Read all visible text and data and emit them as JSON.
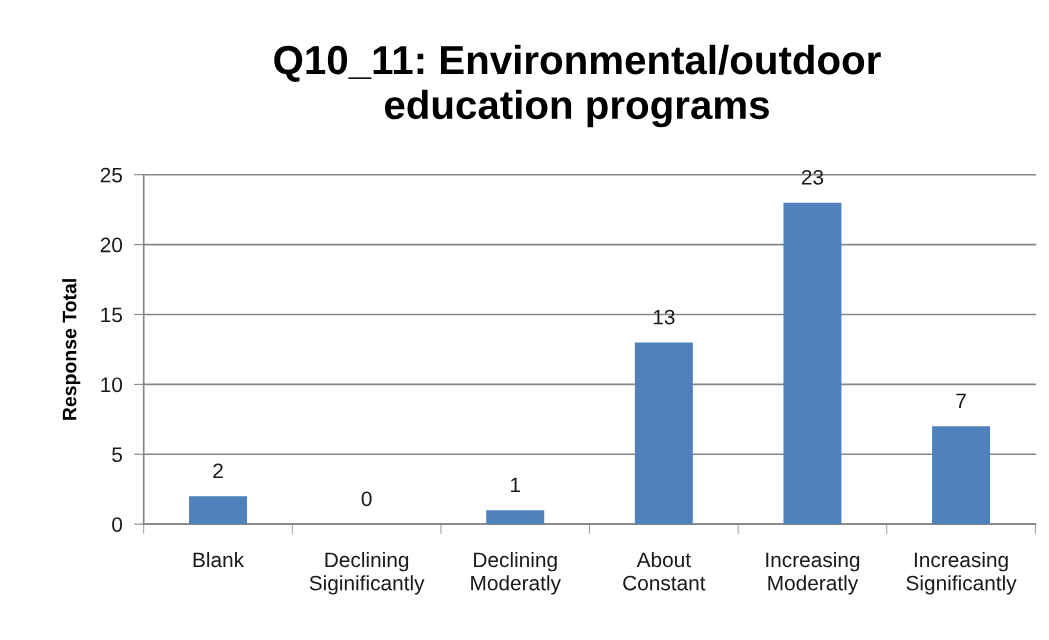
{
  "chart_data": {
    "type": "bar",
    "title": "Q10_11: Environmental/outdoor\neducation programs",
    "ylabel": "Response Total",
    "categories": [
      "Blank",
      "Declining\nSiginificantly",
      "Declining\nModeratly",
      "About\nConstant",
      "Increasing\nModeratly",
      "Increasing\nSignificantly"
    ],
    "values": [
      2,
      0,
      1,
      13,
      23,
      7
    ],
    "color": "#4f81bd",
    "ylim": [
      0,
      25
    ],
    "yticks": [
      0,
      5,
      10,
      15,
      20,
      25
    ],
    "grid": "y",
    "data_labels": true,
    "legend": false
  }
}
